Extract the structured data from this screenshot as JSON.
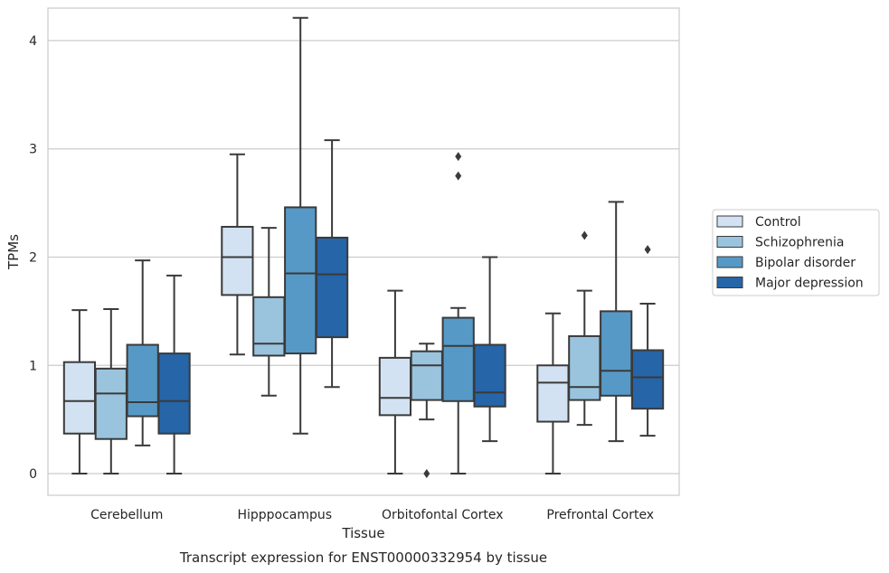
{
  "chart_data": {
    "type": "box",
    "caption": "Transcript expression for ENST00000332954 by tissue",
    "xlabel": "Tissue",
    "ylabel": "TPMs",
    "ylim": [
      -0.2,
      4.3
    ],
    "yticks": [
      0,
      1,
      2,
      3,
      4
    ],
    "grid": "horizontal",
    "legend_position": "right",
    "categories": [
      "Cerebellum",
      "Hipppocampus",
      "Orbitofontal Cortex",
      "Prefrontal Cortex"
    ],
    "series": [
      {
        "name": "Control",
        "color": "#d2e2f2",
        "boxes": [
          {
            "whislo": 0.0,
            "q1": 0.37,
            "med": 0.67,
            "q3": 1.03,
            "whishi": 1.51,
            "fliers": []
          },
          {
            "whislo": 1.1,
            "q1": 1.65,
            "med": 2.0,
            "q3": 2.28,
            "whishi": 2.95,
            "fliers": []
          },
          {
            "whislo": 0.0,
            "q1": 0.54,
            "med": 0.7,
            "q3": 1.07,
            "whishi": 1.69,
            "fliers": []
          },
          {
            "whislo": 0.0,
            "q1": 0.48,
            "med": 0.84,
            "q3": 1.0,
            "whishi": 1.48,
            "fliers": []
          }
        ]
      },
      {
        "name": "Schizophrenia",
        "color": "#9ac4de",
        "boxes": [
          {
            "whislo": 0.0,
            "q1": 0.32,
            "med": 0.74,
            "q3": 0.97,
            "whishi": 1.52,
            "fliers": []
          },
          {
            "whislo": 0.72,
            "q1": 1.09,
            "med": 1.2,
            "q3": 1.63,
            "whishi": 2.27,
            "fliers": []
          },
          {
            "whislo": 0.5,
            "q1": 0.68,
            "med": 1.0,
            "q3": 1.13,
            "whishi": 1.2,
            "fliers": [
              0.0
            ]
          },
          {
            "whislo": 0.45,
            "q1": 0.68,
            "med": 0.8,
            "q3": 1.27,
            "whishi": 1.69,
            "fliers": [
              2.2
            ]
          }
        ]
      },
      {
        "name": "Bipolar disorder",
        "color": "#5799c6",
        "boxes": [
          {
            "whislo": 0.26,
            "q1": 0.53,
            "med": 0.66,
            "q3": 1.19,
            "whishi": 1.97,
            "fliers": []
          },
          {
            "whislo": 0.37,
            "q1": 1.11,
            "med": 1.85,
            "q3": 2.46,
            "whishi": 4.21,
            "fliers": []
          },
          {
            "whislo": 0.0,
            "q1": 0.67,
            "med": 1.18,
            "q3": 1.44,
            "whishi": 1.53,
            "fliers": [
              2.75,
              2.93
            ]
          },
          {
            "whislo": 0.3,
            "q1": 0.72,
            "med": 0.95,
            "q3": 1.5,
            "whishi": 2.51,
            "fliers": []
          }
        ]
      },
      {
        "name": "Major depression",
        "color": "#2565a8",
        "boxes": [
          {
            "whislo": 0.0,
            "q1": 0.37,
            "med": 0.67,
            "q3": 1.11,
            "whishi": 1.83,
            "fliers": []
          },
          {
            "whislo": 0.8,
            "q1": 1.26,
            "med": 1.84,
            "q3": 2.18,
            "whishi": 3.08,
            "fliers": []
          },
          {
            "whislo": 0.3,
            "q1": 0.62,
            "med": 0.75,
            "q3": 1.19,
            "whishi": 2.0,
            "fliers": []
          },
          {
            "whislo": 0.35,
            "q1": 0.6,
            "med": 0.89,
            "q3": 1.14,
            "whishi": 1.57,
            "fliers": [
              2.07
            ]
          }
        ]
      }
    ]
  }
}
